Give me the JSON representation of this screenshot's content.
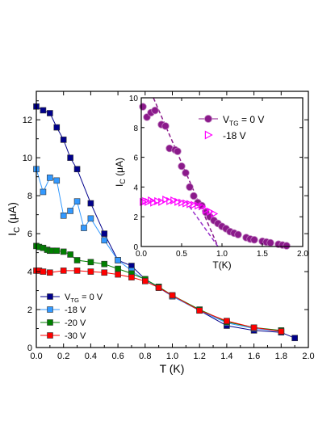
{
  "chart_data": [
    {
      "type": "line",
      "xlabel": "T (K)",
      "ylabel_main": "I",
      "ylabel_sub": "C",
      "ylabel_unit": " (μA)",
      "xlim": [
        0,
        2.0
      ],
      "ylim": [
        0,
        13.5
      ],
      "xticks": [
        "0.0",
        "0.2",
        "0.4",
        "0.6",
        "0.8",
        "1.0",
        "1.2",
        "1.4",
        "1.6",
        "1.8",
        "2.0"
      ],
      "yticks": [
        "0",
        "2",
        "4",
        "6",
        "8",
        "10",
        "12"
      ],
      "legend_position": "bottom-left",
      "grid": false,
      "series": [
        {
          "name": "V_TG = 0 V",
          "color": "#00008b",
          "marker": "square",
          "x": [
            0.0,
            0.05,
            0.1,
            0.15,
            0.2,
            0.25,
            0.3,
            0.4,
            0.5,
            0.6,
            0.7,
            0.8,
            0.9,
            1.0,
            1.2,
            1.4,
            1.6,
            1.8,
            1.9
          ],
          "y": [
            12.7,
            12.5,
            12.35,
            11.6,
            10.95,
            10.0,
            9.4,
            7.6,
            6.0,
            4.6,
            4.3,
            3.6,
            3.15,
            2.7,
            1.95,
            1.15,
            0.9,
            0.8,
            0.5
          ]
        },
        {
          "name": "-18 V",
          "color": "#3399ff",
          "marker": "square",
          "x": [
            0.0,
            0.05,
            0.1,
            0.15,
            0.2,
            0.25,
            0.3,
            0.35,
            0.4,
            0.5,
            0.6,
            0.7,
            0.8,
            0.9,
            1.0,
            1.2,
            1.4,
            1.6,
            1.8
          ],
          "y": [
            9.4,
            8.2,
            8.95,
            8.8,
            6.95,
            7.2,
            7.7,
            6.3,
            6.8,
            5.65,
            4.6,
            4.05,
            3.55,
            3.2,
            2.7,
            1.95,
            1.3,
            1.0,
            0.85
          ]
        },
        {
          "name": "-20 V",
          "color": "#008000",
          "marker": "square",
          "x": [
            0.0,
            0.02,
            0.05,
            0.08,
            0.1,
            0.12,
            0.15,
            0.2,
            0.25,
            0.3,
            0.4,
            0.5,
            0.6,
            0.7,
            0.8,
            0.9,
            1.0,
            1.2,
            1.4,
            1.6,
            1.8
          ],
          "y": [
            5.35,
            5.3,
            5.25,
            5.15,
            5.1,
            5.1,
            5.1,
            5.05,
            4.9,
            4.6,
            4.5,
            4.4,
            4.15,
            3.9,
            3.6,
            3.2,
            2.75,
            2.0,
            1.35,
            1.05,
            0.9
          ]
        },
        {
          "name": "-30 V",
          "color": "#ff0000",
          "marker": "square",
          "x": [
            0.0,
            0.02,
            0.05,
            0.1,
            0.2,
            0.3,
            0.4,
            0.5,
            0.6,
            0.7,
            0.8,
            0.9,
            1.0,
            1.2,
            1.4,
            1.6,
            1.8
          ],
          "y": [
            4.05,
            4.05,
            4.0,
            3.95,
            4.05,
            4.05,
            4.0,
            3.95,
            3.85,
            3.7,
            3.5,
            3.15,
            2.75,
            1.95,
            1.4,
            1.05,
            0.85
          ]
        }
      ],
      "legend": [
        {
          "main": "V",
          "sub": "TG",
          "rest": " = 0 V"
        },
        {
          "main": "-18 V",
          "sub": "",
          "rest": ""
        },
        {
          "main": "-20 V",
          "sub": "",
          "rest": ""
        },
        {
          "main": "-30 V",
          "sub": "",
          "rest": ""
        }
      ]
    },
    {
      "type": "scatter",
      "xlabel": "T(K)",
      "ylabel_main": "I",
      "ylabel_sub": "C",
      "ylabel_unit": " (μA)",
      "xlim": [
        0,
        2.0
      ],
      "ylim": [
        0,
        10
      ],
      "xticks": [
        "0.0",
        "0.5",
        "1.0",
        "1.5",
        "2.0"
      ],
      "yticks": [
        "0",
        "2",
        "4",
        "6",
        "8",
        "10"
      ],
      "legend_position": "top-right",
      "grid": false,
      "series": [
        {
          "name": "V_TG = 0 V",
          "color": "#8b1a8b",
          "marker": "circle",
          "x": [
            0.02,
            0.07,
            0.12,
            0.17,
            0.25,
            0.3,
            0.35,
            0.42,
            0.45,
            0.5,
            0.55,
            0.6,
            0.65,
            0.7,
            0.75,
            0.8,
            0.85,
            0.9,
            0.95,
            1.0,
            1.05,
            1.1,
            1.15,
            1.2,
            1.3,
            1.35,
            1.4,
            1.5,
            1.55,
            1.6,
            1.7,
            1.75,
            1.8
          ],
          "y": [
            9.4,
            8.7,
            9.0,
            9.15,
            8.2,
            8.1,
            6.6,
            6.5,
            6.4,
            5.4,
            4.95,
            4.0,
            3.4,
            2.95,
            2.75,
            2.3,
            2.0,
            1.75,
            1.55,
            1.35,
            1.2,
            1.0,
            0.9,
            0.8,
            0.6,
            0.5,
            0.45,
            0.35,
            0.3,
            0.25,
            0.15,
            0.1,
            0.05
          ]
        },
        {
          "name": "-18 V",
          "color": "#ff00ff",
          "marker": "triangle-right",
          "x": [
            0.02,
            0.05,
            0.08,
            0.12,
            0.15,
            0.2,
            0.25,
            0.3,
            0.35,
            0.4,
            0.45,
            0.5,
            0.55,
            0.6,
            0.65,
            0.7,
            0.75,
            0.8,
            0.85,
            0.9
          ],
          "y": [
            3.0,
            3.05,
            3.0,
            3.1,
            2.95,
            3.05,
            3.0,
            3.15,
            3.05,
            3.1,
            3.0,
            2.95,
            2.9,
            2.85,
            2.8,
            2.75,
            2.7,
            2.45,
            2.35,
            2.2
          ]
        }
      ],
      "fits": [
        {
          "x": [
            0.15,
            0.95
          ],
          "y": [
            10.0,
            0.0
          ],
          "color": "#8b1a8b"
        },
        {
          "x": [
            0.55,
            0.95
          ],
          "y": [
            3.05,
            0.0
          ],
          "color": "#9932cc"
        }
      ],
      "legend": [
        {
          "main": "V",
          "sub": "TG",
          "rest": " = 0 V"
        },
        {
          "main": "-18 V",
          "sub": "",
          "rest": ""
        }
      ]
    }
  ]
}
